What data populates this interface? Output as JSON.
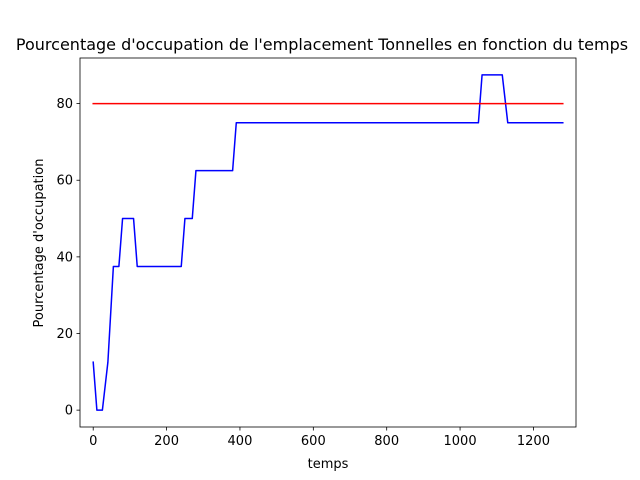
{
  "chart_data": {
    "type": "line",
    "title": "Pourcentage d'occupation de l'emplacement Tonnelles en fonction du temps",
    "xlabel": "temps",
    "ylabel": "Pourcentage d'occupation",
    "xlim": [
      -36,
      1316
    ],
    "ylim": [
      -4.4,
      91.9
    ],
    "xticks": [
      0,
      200,
      400,
      600,
      800,
      1000,
      1200
    ],
    "yticks": [
      0,
      20,
      40,
      60,
      80
    ],
    "grid": false,
    "series": [
      {
        "color": "#0000ff",
        "x": [
          0,
          10,
          25,
          40,
          55,
          60,
          70,
          80,
          100,
          110,
          120,
          240,
          250,
          270,
          280,
          380,
          390,
          1050,
          1060,
          1080,
          1100,
          1115,
          1130,
          1280
        ],
        "y": [
          12.5,
          0,
          0,
          12.5,
          37.5,
          37.5,
          37.5,
          50,
          50,
          50,
          37.5,
          37.5,
          50,
          50,
          62.5,
          62.5,
          75,
          75,
          87.5,
          87.5,
          87.5,
          87.5,
          75,
          75
        ]
      },
      {
        "color": "#ff0000",
        "x": [
          0,
          1280
        ],
        "y": [
          80,
          80
        ]
      }
    ]
  }
}
